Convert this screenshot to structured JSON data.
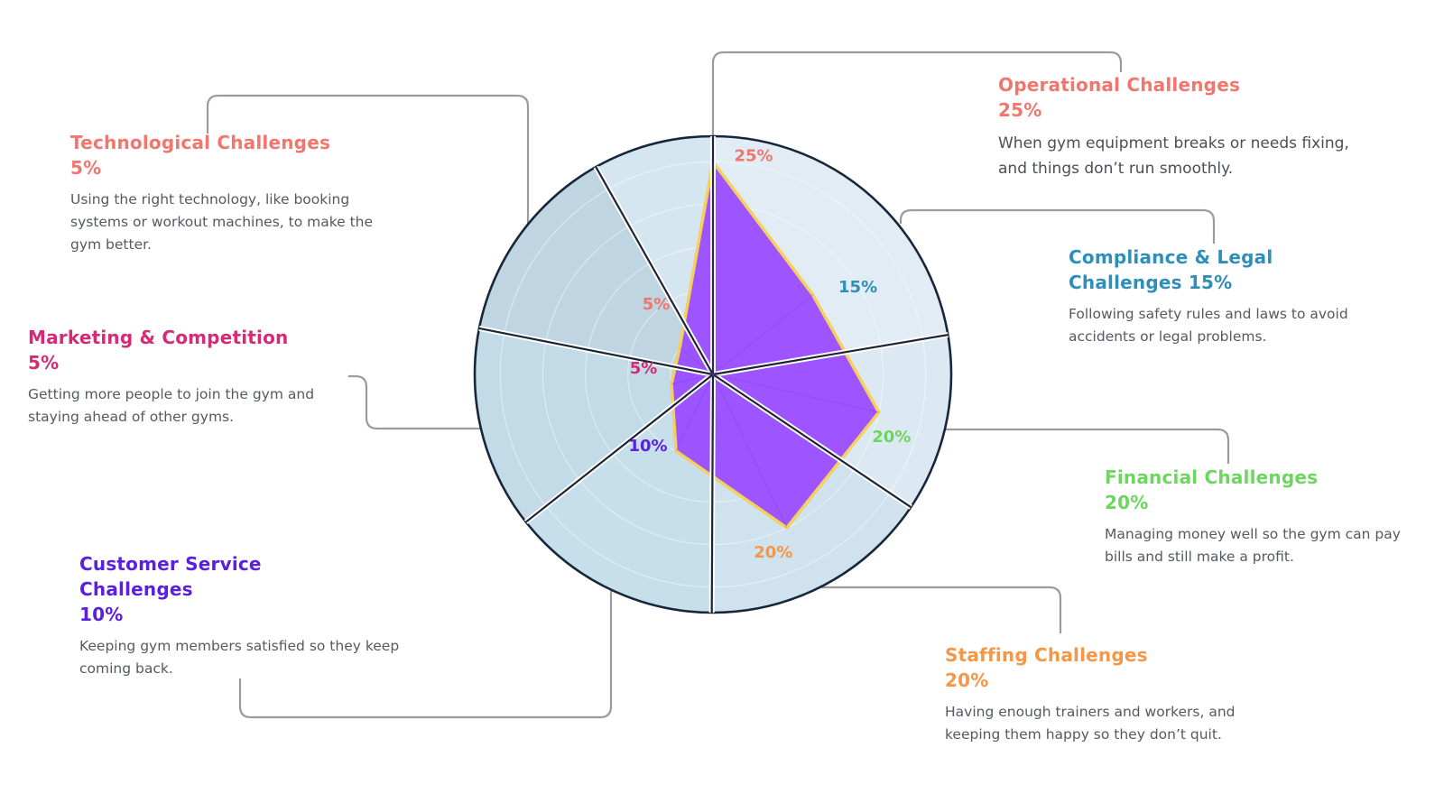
{
  "chart_data": {
    "type": "radar",
    "title": "",
    "categories": [
      "Operational Challenges",
      "Compliance & Legal Challenges",
      "Financial Challenges",
      "Staffing Challenges",
      "Customer Service Challenges",
      "Marketing & Competition",
      "Technological Challenges"
    ],
    "values": [
      25,
      15,
      20,
      20,
      10,
      5,
      5
    ],
    "value_labels": [
      "25%",
      "15%",
      "20%",
      "20%",
      "10%",
      "5%",
      "5%"
    ],
    "value_unit": "%",
    "series_color": "#9a4dff",
    "series_outline_color": "#f5d15a",
    "label_colors": [
      "#f0766e",
      "#2e8fb8",
      "#6cd65f",
      "#f59745",
      "#5b1fe0",
      "#d52a77",
      "#f0766e"
    ],
    "grid": true
  },
  "categories": [
    {
      "title_line1": "Operational Challenges",
      "title_line2": "25%",
      "description_line1": "When gym equipment breaks or needs fixing,",
      "description_line2": "and things don’t run smoothly.",
      "color": "#f0766e"
    },
    {
      "title_line1": "Compliance & Legal",
      "title_line2": "Challenges 15%",
      "description_line1": "Following safety rules and laws to avoid",
      "description_line2": "accidents or legal problems.",
      "color": "#2e8fb8"
    },
    {
      "title_line1": "Financial Challenges",
      "title_line2": "20%",
      "description_line1": "Managing money well so the gym can pay",
      "description_line2": "bills and still make a profit.",
      "color": "#6cd65f"
    },
    {
      "title_line1": "Staffing Challenges",
      "title_line2": "20%",
      "description_line1": "Having enough trainers and workers, and",
      "description_line2": "keeping them happy so they don’t quit.",
      "color": "#f59745"
    },
    {
      "title_line1": "Customer Service",
      "title_line2": "Challenges",
      "title_line3": "10%",
      "description_line1": "Keeping gym members satisfied so they keep",
      "description_line2": "coming back.",
      "color": "#5b1fe0"
    },
    {
      "title_line1": "Marketing & Competition",
      "title_line2": "5%",
      "description_line1": "Getting more people to join the gym and",
      "description_line2": "staying ahead of other gyms.",
      "color": "#d52a77"
    },
    {
      "title_line1": "Technological Challenges",
      "title_line2": "5%",
      "description_line1": "Using the right technology, like booking",
      "description_line2": "systems or workout machines, to make the",
      "description_line3": "gym better.",
      "color": "#f0766e"
    }
  ]
}
